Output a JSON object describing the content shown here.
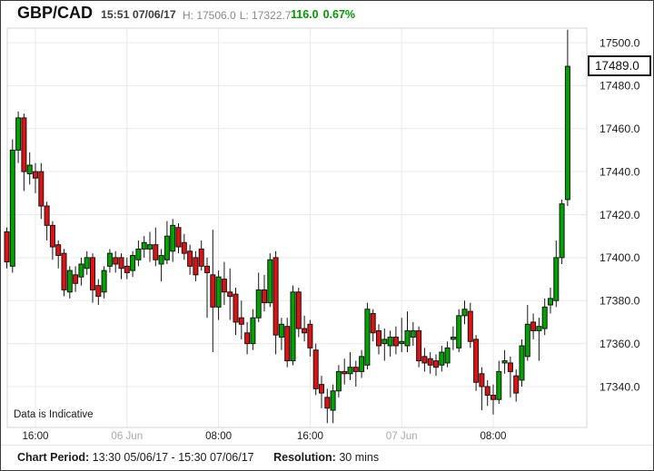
{
  "header": {
    "symbol": "GBP/CAD",
    "datetime": "15:51 07/06/17",
    "high_label": "H: 17506.0",
    "low_label": "L: 17322.7",
    "change": "116.0",
    "change_pct": "0.67%",
    "change_color": "#009b00"
  },
  "watermark": "Data is Indicative",
  "price_tag": "17489.0",
  "footer": {
    "period_label": "Chart Period:",
    "period_value": "13:30 05/06/17 - 15:30 07/06/17",
    "resolution_label": "Resolution:",
    "resolution_value": "30 mins"
  },
  "chart_data": {
    "type": "candlestick",
    "title": "GBP/CAD",
    "resolution": "30 mins",
    "period": "13:30 05/06/17 - 15:30 07/06/17",
    "high": 17506.0,
    "low": 17322.7,
    "last": 17489.0,
    "change": 116.0,
    "change_pct": 0.67,
    "ylim": [
      17321,
      17507
    ],
    "grid": true,
    "y_ticks": [
      {
        "value": 17500,
        "label": "17500.0"
      },
      {
        "value": 17480,
        "label": "17480.0"
      },
      {
        "value": 17460,
        "label": "17460.0"
      },
      {
        "value": 17440,
        "label": "17440.0"
      },
      {
        "value": 17420,
        "label": "17420.0"
      },
      {
        "value": 17400,
        "label": "17400.0"
      },
      {
        "value": 17380,
        "label": "17380.0"
      },
      {
        "value": 17360,
        "label": "17360.0"
      },
      {
        "value": 17340,
        "label": "17340.0"
      }
    ],
    "x_ticks": [
      {
        "index": 5,
        "label": "16:00",
        "muted": false
      },
      {
        "index": 21,
        "label": "06 Jun",
        "muted": true
      },
      {
        "index": 37,
        "label": "08:00",
        "muted": false
      },
      {
        "index": 53,
        "label": "16:00",
        "muted": false
      },
      {
        "index": 69,
        "label": "07 Jun",
        "muted": true
      },
      {
        "index": 85,
        "label": "08:00",
        "muted": false
      }
    ],
    "colors": {
      "up": "#00a400",
      "down": "#de1212",
      "wick": "#151515",
      "grid": "#e9e9e9",
      "frame": "#d5d5d5",
      "tick_label": "#1b1b1b",
      "muted_tick_label": "#a9a9a9"
    },
    "candles": [
      [
        17412,
        17414,
        17395,
        17398
      ],
      [
        17396,
        17455,
        17393,
        17450
      ],
      [
        17450,
        17468,
        17444,
        17465
      ],
      [
        17465,
        17467,
        17431,
        17440
      ],
      [
        17439,
        17449,
        17434,
        17443
      ],
      [
        17440,
        17444,
        17430,
        17437
      ],
      [
        17440,
        17444,
        17418,
        17424
      ],
      [
        17424,
        17426,
        17408,
        17415
      ],
      [
        17415,
        17417,
        17399,
        17405
      ],
      [
        17406,
        17408,
        17395,
        17401
      ],
      [
        17402,
        17404,
        17382,
        17385
      ],
      [
        17384,
        17396,
        17381,
        17394
      ],
      [
        17392,
        17396,
        17384,
        17388
      ],
      [
        17391,
        17400,
        17387,
        17397
      ],
      [
        17395,
        17403,
        17392,
        17400
      ],
      [
        17400,
        17402,
        17379,
        17385
      ],
      [
        17387,
        17390,
        17378,
        17382
      ],
      [
        17384,
        17396,
        17381,
        17394
      ],
      [
        17396,
        17404,
        17393,
        17402
      ],
      [
        17400,
        17403,
        17393,
        17397
      ],
      [
        17400,
        17402,
        17390,
        17395
      ],
      [
        17396,
        17400,
        17390,
        17393
      ],
      [
        17394,
        17403,
        17391,
        17401
      ],
      [
        17399,
        17408,
        17396,
        17404
      ],
      [
        17404,
        17410,
        17400,
        17407
      ],
      [
        17404,
        17412,
        17398,
        17406
      ],
      [
        17406,
        17414,
        17396,
        17399
      ],
      [
        17397,
        17404,
        17389,
        17401
      ],
      [
        17399,
        17417,
        17397,
        17410
      ],
      [
        17403,
        17418,
        17398,
        17415
      ],
      [
        17414,
        17416,
        17402,
        17405
      ],
      [
        17407,
        17411,
        17399,
        17402
      ],
      [
        17403,
        17406,
        17392,
        17396
      ],
      [
        17400,
        17403,
        17389,
        17392
      ],
      [
        17404,
        17408,
        17394,
        17396
      ],
      [
        17396,
        17400,
        17372,
        17393
      ],
      [
        17392,
        17413,
        17356,
        17377
      ],
      [
        17377,
        17394,
        17371,
        17391
      ],
      [
        17390,
        17398,
        17378,
        17384
      ],
      [
        17384,
        17395,
        17371,
        17382
      ],
      [
        17383,
        17386,
        17364,
        17370
      ],
      [
        17372,
        17380,
        17362,
        17369
      ],
      [
        17365,
        17370,
        17355,
        17360
      ],
      [
        17360,
        17376,
        17357,
        17372
      ],
      [
        17372,
        17393,
        17370,
        17385
      ],
      [
        17385,
        17392,
        17375,
        17379
      ],
      [
        17379,
        17402,
        17377,
        17399
      ],
      [
        17400,
        17403,
        17355,
        17364
      ],
      [
        17363,
        17372,
        17357,
        17369
      ],
      [
        17368,
        17372,
        17349,
        17352
      ],
      [
        17352,
        17387,
        17350,
        17384
      ],
      [
        17384,
        17386,
        17363,
        17367
      ],
      [
        17367,
        17373,
        17361,
        17365
      ],
      [
        17369,
        17371,
        17354,
        17358
      ],
      [
        17357,
        17360,
        17336,
        17339
      ],
      [
        17341,
        17345,
        17330,
        17337
      ],
      [
        17335,
        17339,
        17323,
        17330
      ],
      [
        17329,
        17341,
        17323,
        17338
      ],
      [
        17338,
        17350,
        17335,
        17347
      ],
      [
        17347,
        17353,
        17341,
        17346
      ],
      [
        17346,
        17356,
        17343,
        17349
      ],
      [
        17349,
        17352,
        17340,
        17347
      ],
      [
        17347,
        17357,
        17344,
        17354
      ],
      [
        17350,
        17379,
        17348,
        17376
      ],
      [
        17374,
        17376,
        17361,
        17365
      ],
      [
        17366,
        17369,
        17355,
        17359
      ],
      [
        17360,
        17367,
        17352,
        17362
      ],
      [
        17359,
        17366,
        17354,
        17363
      ],
      [
        17363,
        17368,
        17355,
        17359
      ],
      [
        17360,
        17372,
        17356,
        17361
      ],
      [
        17359,
        17375,
        17356,
        17366
      ],
      [
        17363,
        17370,
        17359,
        17366
      ],
      [
        17366,
        17368,
        17349,
        17352
      ],
      [
        17354,
        17358,
        17347,
        17351
      ],
      [
        17353,
        17356,
        17346,
        17350
      ],
      [
        17352,
        17355,
        17345,
        17349
      ],
      [
        17350,
        17359,
        17347,
        17356
      ],
      [
        17351,
        17361,
        17349,
        17358
      ],
      [
        17362,
        17368,
        17357,
        17363
      ],
      [
        17358,
        17376,
        17356,
        17373
      ],
      [
        17373,
        17380,
        17369,
        17376
      ],
      [
        17375,
        17379,
        17358,
        17361
      ],
      [
        17362,
        17364,
        17338,
        17342
      ],
      [
        17346,
        17349,
        17329,
        17340
      ],
      [
        17340,
        17343,
        17331,
        17336
      ],
      [
        17336,
        17341,
        17327,
        17334
      ],
      [
        17334,
        17352,
        17332,
        17347
      ],
      [
        17351,
        17357,
        17346,
        17352
      ],
      [
        17351,
        17354,
        17335,
        17347
      ],
      [
        17345,
        17348,
        17333,
        17337
      ],
      [
        17343,
        17362,
        17340,
        17359
      ],
      [
        17354,
        17378,
        17352,
        17369
      ],
      [
        17370,
        17374,
        17362,
        17366
      ],
      [
        17366,
        17372,
        17352,
        17368
      ],
      [
        17367,
        17381,
        17364,
        17377
      ],
      [
        17378,
        17386,
        17374,
        17381
      ],
      [
        17380,
        17408,
        17377,
        17400
      ],
      [
        17400,
        17427,
        17397,
        17425
      ],
      [
        17427,
        17506,
        17424,
        17489
      ]
    ]
  }
}
